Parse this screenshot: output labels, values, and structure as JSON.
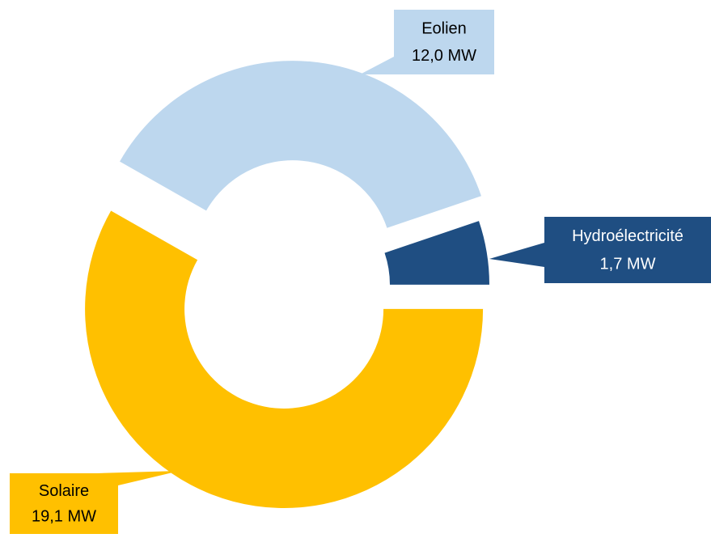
{
  "chart_data": {
    "type": "donut",
    "categories": [
      "Eolien",
      "Hydroélectricité",
      "Solaire"
    ],
    "values": [
      12.0,
      1.7,
      19.1
    ],
    "value_labels": [
      "12,0 MW",
      "1,7 MW",
      "19,1 MW"
    ],
    "colors": [
      "#bdd7ee",
      "#1f4e82",
      "#ffc000"
    ]
  }
}
